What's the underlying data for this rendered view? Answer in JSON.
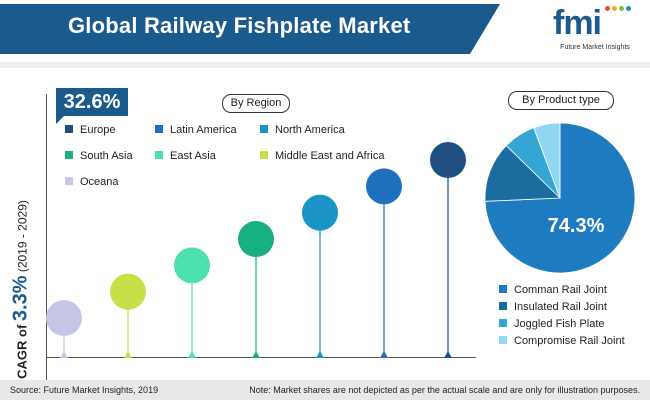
{
  "header": {
    "title": "Global Railway Fishplate Market"
  },
  "logo": {
    "main": "fmi",
    "sub": "Future Market Insights"
  },
  "callout": {
    "value": "32.6%"
  },
  "region_label": "By Region",
  "product_label": "By Product type",
  "cagr": {
    "prefix": "CAGR of ",
    "value": "3.3%",
    "period": " (2019 - 2029)"
  },
  "colors": {
    "brand": "#1b5a8c",
    "Europe": "#1f4f7f",
    "Latin America": "#1f6fbf",
    "North America": "#1a93c7",
    "South Asia": "#17b083",
    "East Asia": "#4fe0b0",
    "Middle East and Africa": "#c6e04a",
    "Oceana": "#c5c6e8"
  },
  "chart_data": [
    {
      "type": "scatter",
      "title": "By Region",
      "series": [
        {
          "name": "Oceana",
          "level": 1
        },
        {
          "name": "Middle East and Africa",
          "level": 2
        },
        {
          "name": "East Asia",
          "level": 3
        },
        {
          "name": "South Asia",
          "level": 4
        },
        {
          "name": "North America",
          "level": 5
        },
        {
          "name": "Latin America",
          "level": 6
        },
        {
          "name": "Europe",
          "level": 7
        }
      ],
      "legend": [
        "Europe",
        "Latin America",
        "North America",
        "South Asia",
        "East Asia",
        "Middle East and Africa",
        "Oceana"
      ],
      "highlight": {
        "label": "32.6%"
      }
    },
    {
      "type": "pie",
      "title": "By Product type",
      "slices": [
        {
          "name": "Comman Rail Joint",
          "value": 74.3,
          "color": "#1f7bbf"
        },
        {
          "name": "Insulated Rail Joint",
          "value": 13.0,
          "color": "#1a6d9e"
        },
        {
          "name": "Joggled Fish Plate",
          "value": 7.0,
          "color": "#35a5d3"
        },
        {
          "name": "Compromise Rail Joint",
          "value": 5.7,
          "color": "#8fd7f2"
        }
      ],
      "data_label": "74.3%"
    }
  ],
  "footer": {
    "source": "Source: Future Market Insights, 2019",
    "note": "Note: Market shares are not depicted as per the actual scale and are only for illustration purposes."
  }
}
